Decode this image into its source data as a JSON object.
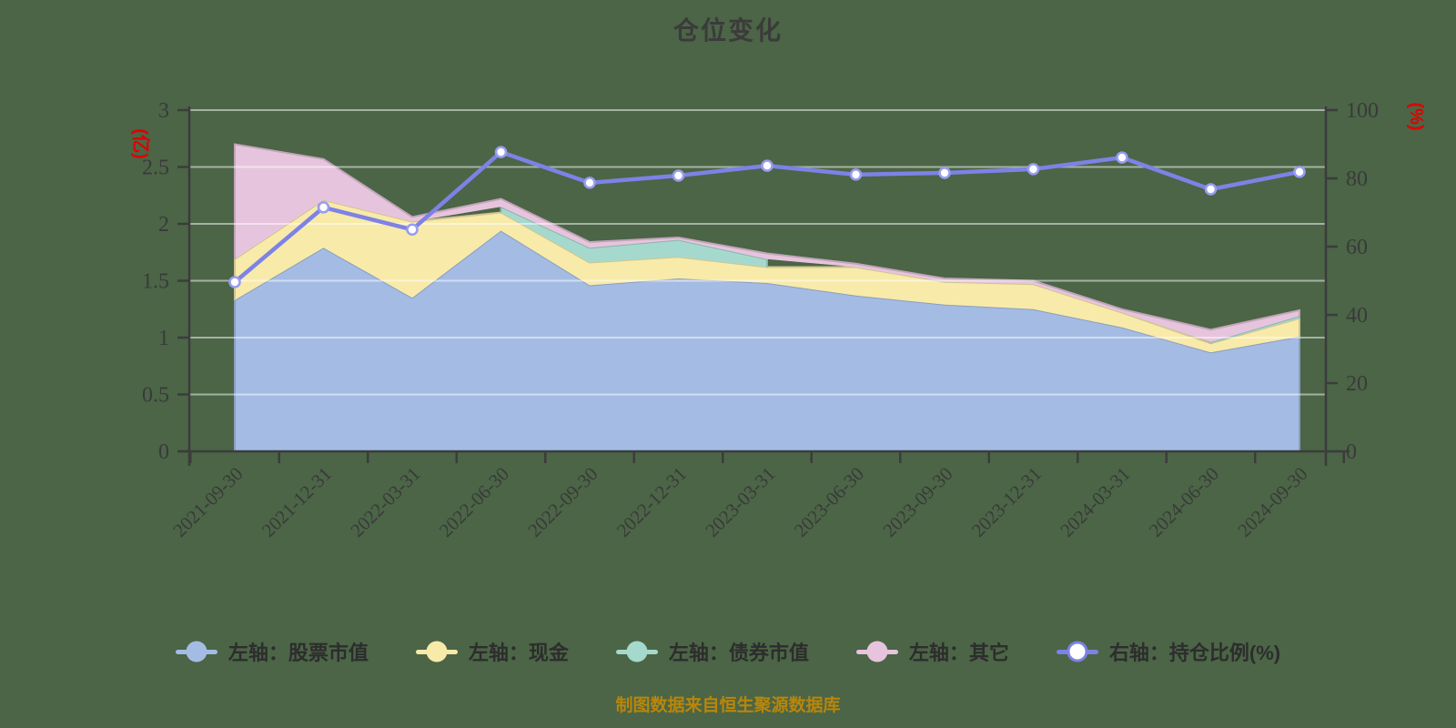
{
  "page": {
    "title": "仓位变化",
    "footer": "制图数据来自恒生聚源数据库",
    "background_color": "#4b6546"
  },
  "chart_data": {
    "type": "area",
    "subtype": "stacked-area-with-line-combo",
    "title": "仓位变化",
    "categories": [
      "2021-09-30",
      "2021-12-31",
      "2022-03-31",
      "2022-06-30",
      "2022-09-30",
      "2022-12-31",
      "2023-03-31",
      "2023-06-30",
      "2023-09-30",
      "2023-12-31",
      "2024-03-31",
      "2024-06-30",
      "2024-09-30"
    ],
    "series": [
      {
        "name": "左轴：股票市值",
        "type": "area",
        "stack": true,
        "axis": "left",
        "color": "#a4bce4",
        "values": [
          1.33,
          1.79,
          1.35,
          1.94,
          1.46,
          1.52,
          1.48,
          1.37,
          1.29,
          1.25,
          1.09,
          0.87,
          1.01
        ]
      },
      {
        "name": "左轴：现金",
        "type": "area",
        "stack": true,
        "axis": "left",
        "color": "#f8eaa9",
        "values": [
          0.36,
          0.42,
          0.67,
          0.16,
          0.2,
          0.19,
          0.14,
          0.25,
          0.2,
          0.22,
          0.13,
          0.08,
          0.16
        ]
      },
      {
        "name": "左轴：债券市值",
        "type": "area",
        "stack": true,
        "axis": "left",
        "color": "#a6d9cd",
        "values": [
          0,
          0,
          0,
          0.05,
          0.13,
          0.15,
          0.07,
          0,
          0,
          0,
          0,
          0.01,
          0.02
        ]
      },
      {
        "name": "左轴：其它",
        "type": "area",
        "stack": true,
        "axis": "left",
        "color": "#e7c4dd",
        "values": [
          1.01,
          0.36,
          0.04,
          0.07,
          0.05,
          0.02,
          0.05,
          0.03,
          0.03,
          0.03,
          0.03,
          0.11,
          0.05
        ]
      },
      {
        "name": "右轴：持仓比例(%)",
        "type": "line",
        "stack": false,
        "axis": "right",
        "color": "#7d82e6",
        "dot_fill": "#ffffff",
        "dot_stroke": "#989cf0",
        "values": [
          49.6,
          71.5,
          65.0,
          87.7,
          78.7,
          80.8,
          83.7,
          81.1,
          81.6,
          82.7,
          86.1,
          76.8,
          81.9
        ]
      }
    ],
    "left_axis": {
      "unit_label": "(亿)",
      "min": 0,
      "max": 3,
      "tick_labels": [
        "0",
        "0.5",
        "1",
        "1.5",
        "2",
        "2.5",
        "3"
      ],
      "label_color": "#e00000"
    },
    "right_axis": {
      "unit_label": "(%)",
      "min": 0,
      "max": 100,
      "tick_labels": [
        "0",
        "20",
        "40",
        "60",
        "80",
        "100"
      ],
      "label_color": "#e00000"
    },
    "grid": true,
    "legend_position": "bottom",
    "axis_color": "#3c3c3c",
    "tick_text_color": "#3a3a3a"
  }
}
